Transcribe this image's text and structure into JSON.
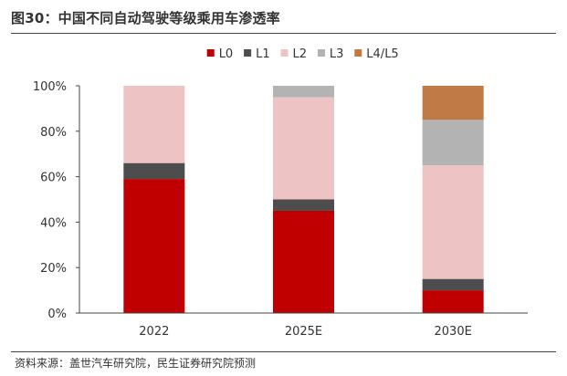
{
  "header": {
    "title": "图30：中国不同自动驾驶等级乘用车渗透率"
  },
  "footer": {
    "source": "资料来源：盖世汽车研究院，民生证券研究院预测"
  },
  "chart_data": {
    "type": "bar",
    "stacked": true,
    "categories": [
      "2022",
      "2025E",
      "2030E"
    ],
    "series": [
      {
        "name": "L0",
        "values": [
          59,
          45,
          10
        ],
        "color": "#c00000"
      },
      {
        "name": "L1",
        "values": [
          7,
          5,
          5
        ],
        "color": "#4d4d4d"
      },
      {
        "name": "L2",
        "values": [
          34,
          45,
          50
        ],
        "color": "#eec3c3"
      },
      {
        "name": "L3",
        "values": [
          0,
          5,
          20
        ],
        "color": "#b3b3b3"
      },
      {
        "name": "L4/L5",
        "values": [
          0,
          0,
          15
        ],
        "color": "#c07a45"
      }
    ],
    "y_ticks": [
      "0%",
      "20%",
      "40%",
      "60%",
      "80%",
      "100%"
    ],
    "ylim": [
      0,
      100
    ],
    "legend_position": "top",
    "grid": false
  }
}
